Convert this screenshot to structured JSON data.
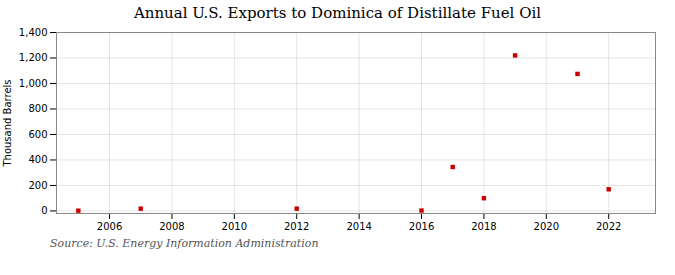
{
  "chart_data": {
    "type": "scatter",
    "title": "Annual U.S. Exports to Dominica of Distillate Fuel Oil",
    "ylabel": "Thousand Barrels",
    "source": "Source: U.S. Energy Information Administration",
    "x": [
      2005,
      2007,
      2012,
      2016,
      2017,
      2018,
      2019,
      2021,
      2022
    ],
    "values": [
      2,
      18,
      18,
      3,
      345,
      100,
      1220,
      1075,
      170
    ],
    "color": "#cc0000",
    "marker": "square",
    "xlim": [
      2004.3,
      2023.5
    ],
    "xticks": [
      2006,
      2008,
      2010,
      2012,
      2014,
      2016,
      2018,
      2020,
      2022
    ],
    "ylim": [
      -20,
      1400
    ],
    "yticks": [
      0,
      200,
      400,
      600,
      800,
      {
        "value": 1000,
        "label": "1,000"
      },
      {
        "value": 1200,
        "label": "1,200"
      },
      {
        "value": 1400,
        "label": "1,400"
      }
    ],
    "grid": true
  }
}
